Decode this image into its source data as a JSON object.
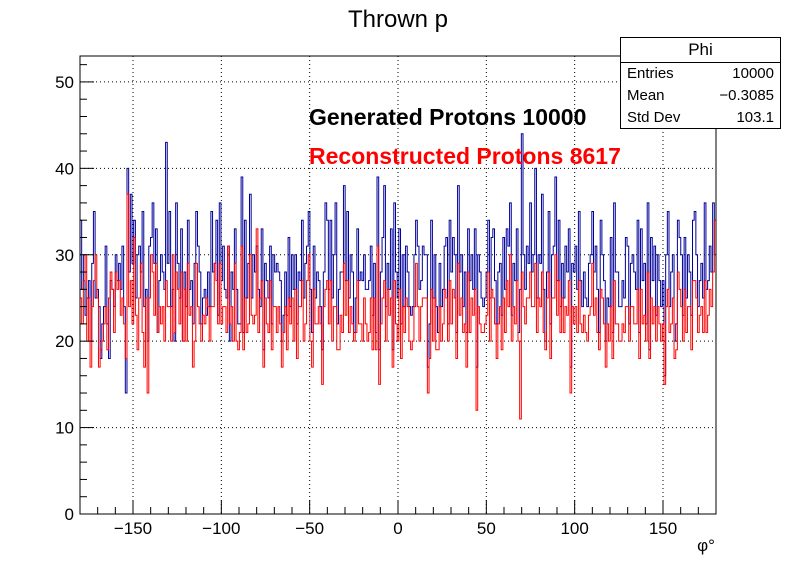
{
  "chart_data": {
    "type": "line",
    "title": "Thrown p",
    "xlabel": "φ°",
    "ylabel": "",
    "xlim": [
      -180,
      180
    ],
    "ylim": [
      0,
      53
    ],
    "x_ticks": [
      -150,
      -100,
      -50,
      0,
      50,
      100,
      150
    ],
    "y_ticks": [
      0,
      10,
      20,
      30,
      40,
      50
    ],
    "grid": true,
    "annotations": [
      {
        "text": "Generated Protons 10000",
        "color": "#000000"
      },
      {
        "text": "Reconstructed Protons 8617",
        "color": "#ff0000"
      }
    ],
    "stats_box": {
      "title": "Phi",
      "rows": [
        {
          "label": "Entries",
          "value": "10000"
        },
        {
          "label": "Mean",
          "value": "−0.3085"
        },
        {
          "label": "Std Dev",
          "value": "103.1"
        }
      ]
    },
    "series": [
      {
        "color": "#000099",
        "bin_width": 1,
        "values": [
          34,
          26,
          30,
          23,
          25,
          27,
          20,
          29,
          35,
          25,
          26,
          24,
          18,
          22,
          24,
          31,
          22,
          18,
          27,
          26,
          24,
          30,
          27,
          29,
          26,
          31,
          24,
          14,
          40,
          28,
          37,
          29,
          34,
          25,
          30,
          31,
          28,
          35,
          24,
          26,
          20,
          31,
          32,
          36,
          29,
          33,
          21,
          27,
          30,
          28,
          26,
          43,
          29,
          35,
          24,
          26,
          20,
          36,
          29,
          25,
          33,
          20,
          28,
          24,
          34,
          26,
          27,
          22,
          29,
          35,
          31,
          28,
          22,
          25,
          26,
          23,
          28,
          24,
          35,
          28,
          29,
          34,
          23,
          36,
          27,
          31,
          26,
          25,
          31,
          20,
          28,
          26,
          33,
          26,
          22,
          22,
          39,
          21,
          34,
          25,
          29,
          37,
          25,
          30,
          28,
          31,
          26,
          24,
          33,
          19,
          29,
          27,
          25,
          31,
          22,
          30,
          28,
          29,
          28,
          27,
          20,
          23,
          28,
          23,
          32,
          24,
          30,
          26,
          30,
          22,
          28,
          27,
          34,
          25,
          29,
          31,
          35,
          26,
          21,
          31,
          25,
          28,
          27,
          24,
          19,
          28,
          36,
          34,
          26,
          34,
          25,
          30,
          36,
          22,
          26,
          28,
          28,
          38,
          27,
          35,
          25,
          30,
          28,
          21,
          25,
          33,
          27,
          28,
          27,
          30,
          26,
          26,
          27,
          31,
          23,
          29,
          21,
          39,
          19,
          28,
          32,
          38,
          24,
          29,
          26,
          33,
          19,
          36,
          28,
          25,
          33,
          22,
          30,
          24,
          31,
          28,
          24,
          23,
          24,
          30,
          34,
          31,
          26,
          27,
          31,
          30,
          30,
          17,
          22,
          34,
          25,
          30,
          24,
          21,
          29,
          24,
          26,
          31,
          32,
          22,
          34,
          28,
          32,
          30,
          21,
          38,
          28,
          30,
          24,
          28,
          21,
          33,
          27,
          30,
          26,
          33,
          17,
          30,
          28,
          25,
          24,
          25,
          28,
          34,
          25,
          32,
          33,
          27,
          22,
          28,
          29,
          23,
          32,
          26,
          33,
          31,
          36,
          23,
          29,
          27,
          33,
          21,
          26,
          44,
          30,
          26,
          31,
          29,
          36,
          28,
          30,
          40,
          25,
          30,
          29,
          37,
          26,
          20,
          28,
          35,
          22,
          30,
          31,
          39,
          27,
          34,
          24,
          29,
          25,
          31,
          28,
          33,
          17,
          29,
          28,
          31,
          26,
          35,
          27,
          24,
          28,
          25,
          24,
          29,
          30,
          35,
          28,
          31,
          26,
          21,
          34,
          30,
          27,
          20,
          25,
          24,
          32,
          21,
          36,
          28,
          28,
          24,
          24,
          27,
          25,
          32,
          31,
          22,
          29,
          30,
          28,
          26,
          34,
          21,
          33,
          27,
          29,
          22,
          36,
          19,
          32,
          27,
          31,
          23,
          30,
          27,
          24,
          27,
          16,
          30,
          35,
          24,
          28,
          30,
          20,
          22,
          34,
          32,
          30,
          23,
          32,
          25,
          30,
          28,
          23,
          34,
          35,
          30,
          24,
          27,
          29,
          25,
          36,
          26,
          27,
          31,
          28,
          36,
          30
        ]
      },
      {
        "color": "#ff0000",
        "bin_width": 1,
        "values": [
          25,
          22,
          27,
          30,
          20,
          25,
          17,
          24,
          27,
          30,
          25,
          17,
          19,
          20,
          22,
          24,
          19,
          25,
          28,
          26,
          21,
          28,
          26,
          27,
          23,
          25,
          22,
          18,
          37,
          24,
          27,
          22,
          32,
          23,
          19,
          25,
          29,
          21,
          17,
          25,
          14,
          25,
          30,
          28,
          23,
          29,
          21,
          24,
          22,
          24,
          20,
          27,
          24,
          24,
          20,
          30,
          21,
          28,
          26,
          22,
          28,
          20,
          26,
          20,
          29,
          23,
          24,
          17,
          20,
          29,
          24,
          22,
          20,
          23,
          22,
          25,
          24,
          20,
          24,
          24,
          29,
          27,
          22,
          29,
          22,
          24,
          24,
          21,
          31,
          22,
          24,
          20,
          29,
          20,
          19,
          21,
          31,
          19,
          25,
          21,
          22,
          30,
          23,
          22,
          23,
          33,
          21,
          25,
          27,
          17,
          25,
          22,
          21,
          27,
          19,
          24,
          24,
          21,
          24,
          22,
          17,
          21,
          24,
          19,
          25,
          22,
          25,
          20,
          26,
          18,
          24,
          24,
          27,
          20,
          22,
          27,
          30,
          20,
          17,
          26,
          22,
          22,
          24,
          22,
          15,
          24,
          26,
          27,
          22,
          27,
          20,
          24,
          24,
          19,
          19,
          23,
          21,
          29,
          23,
          27,
          21,
          24,
          22,
          20,
          21,
          27,
          22,
          22,
          20,
          25,
          22,
          20,
          21,
          25,
          19,
          25,
          19,
          31,
          15,
          22,
          25,
          27,
          20,
          26,
          23,
          25,
          17,
          27,
          22,
          20,
          26,
          18,
          24,
          21,
          25,
          24,
          20,
          19,
          20,
          24,
          29,
          24,
          20,
          24,
          25,
          25,
          25,
          14,
          18,
          26,
          20,
          25,
          19,
          19,
          24,
          20,
          22,
          26,
          25,
          20,
          27,
          22,
          26,
          25,
          18,
          29,
          23,
          25,
          21,
          22,
          17,
          28,
          21,
          25,
          23,
          26,
          12,
          24,
          22,
          21,
          21,
          22,
          23,
          28,
          20,
          26,
          25,
          22,
          18,
          22,
          24,
          19,
          25,
          21,
          27,
          24,
          30,
          20,
          24,
          22,
          27,
          20,
          11,
          28,
          24,
          22,
          25,
          25,
          28,
          24,
          24,
          29,
          21,
          25,
          24,
          28,
          21,
          19,
          25,
          28,
          18,
          25,
          25,
          30,
          23,
          27,
          21,
          25,
          21,
          24,
          23,
          27,
          14,
          24,
          22,
          24,
          21,
          27,
          22,
          21,
          23,
          21,
          20,
          23,
          24,
          29,
          23,
          25,
          21,
          19,
          26,
          25,
          22,
          17,
          22,
          20,
          24,
          18,
          27,
          22,
          22,
          20,
          20,
          22,
          21,
          24,
          24,
          20,
          24,
          24,
          22,
          22,
          26,
          18,
          26,
          22,
          23,
          20,
          28,
          18,
          25,
          22,
          24,
          20,
          24,
          22,
          20,
          22,
          15,
          24,
          26,
          21,
          22,
          25,
          18,
          19,
          28,
          26,
          24,
          20,
          26,
          21,
          24,
          24,
          19,
          27,
          27,
          25,
          21,
          23,
          24,
          21,
          27,
          21,
          23,
          26,
          24,
          28,
          34
        ]
      }
    ]
  }
}
